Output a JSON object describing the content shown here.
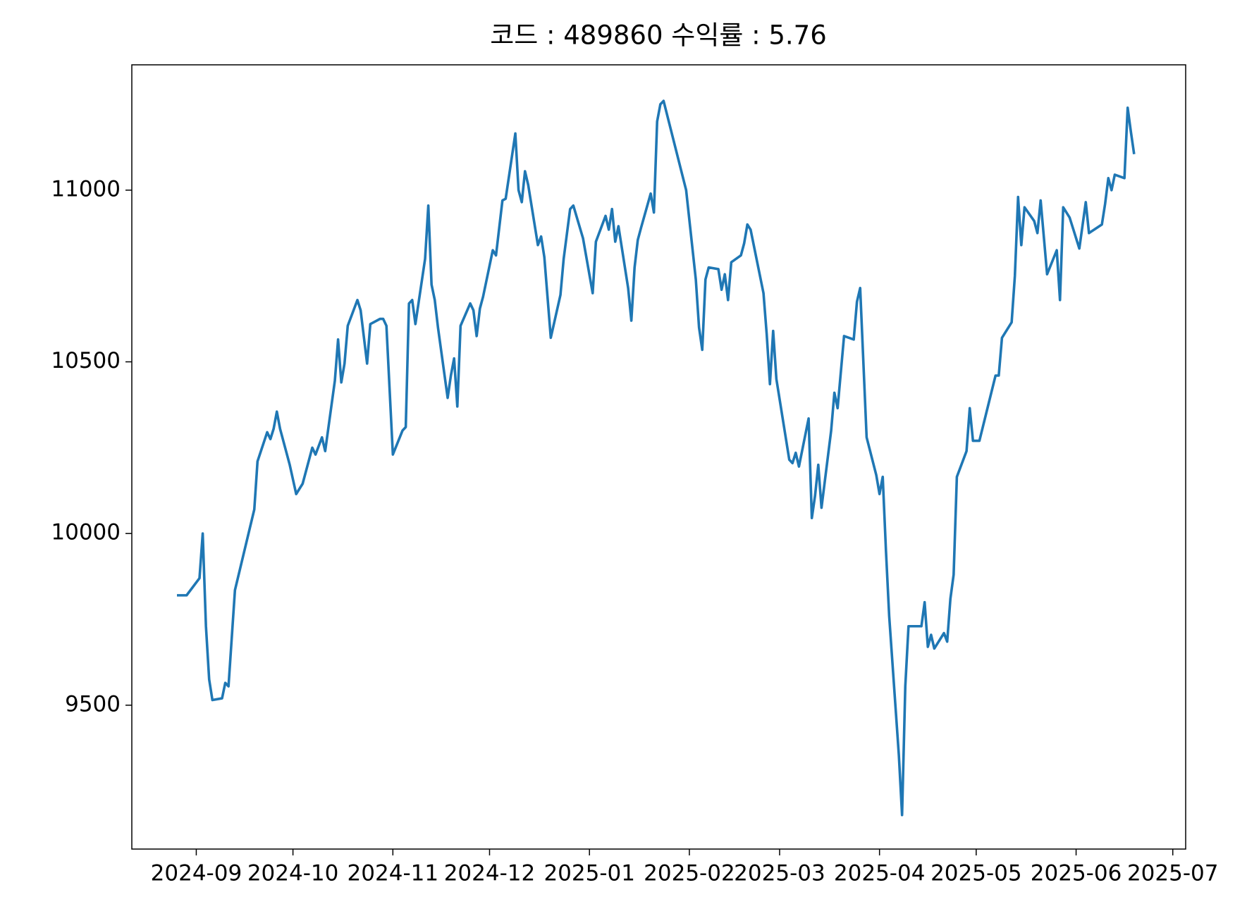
{
  "chart_data": {
    "type": "line",
    "title": "코드 : 489860 수익률 : 5.76",
    "color": "#1f77b4",
    "x": [
      "2024-08-26",
      "2024-08-29",
      "2024-09-02",
      "2024-09-03",
      "2024-09-04",
      "2024-09-05",
      "2024-09-06",
      "2024-09-09",
      "2024-09-10",
      "2024-09-11",
      "2024-09-13",
      "2024-09-19",
      "2024-09-20",
      "2024-09-23",
      "2024-09-24",
      "2024-09-25",
      "2024-09-26",
      "2024-09-27",
      "2024-09-30",
      "2024-10-02",
      "2024-10-04",
      "2024-10-07",
      "2024-10-08",
      "2024-10-10",
      "2024-10-11",
      "2024-10-14",
      "2024-10-15",
      "2024-10-16",
      "2024-10-17",
      "2024-10-18",
      "2024-10-21",
      "2024-10-22",
      "2024-10-24",
      "2024-10-25",
      "2024-10-28",
      "2024-10-29",
      "2024-10-30",
      "2024-11-01",
      "2024-11-04",
      "2024-11-05",
      "2024-11-06",
      "2024-11-07",
      "2024-11-08",
      "2024-11-11",
      "2024-11-12",
      "2024-11-13",
      "2024-11-14",
      "2024-11-15",
      "2024-11-18",
      "2024-11-19",
      "2024-11-20",
      "2024-11-21",
      "2024-11-22",
      "2024-11-25",
      "2024-11-26",
      "2024-11-27",
      "2024-11-28",
      "2024-11-29",
      "2024-12-02",
      "2024-12-03",
      "2024-12-05",
      "2024-12-06",
      "2024-12-09",
      "2024-12-10",
      "2024-12-11",
      "2024-12-12",
      "2024-12-13",
      "2024-12-16",
      "2024-12-17",
      "2024-12-18",
      "2024-12-20",
      "2024-12-23",
      "2024-12-24",
      "2024-12-26",
      "2024-12-27",
      "2024-12-30",
      "2025-01-02",
      "2025-01-03",
      "2025-01-06",
      "2025-01-07",
      "2025-01-08",
      "2025-01-09",
      "2025-01-10",
      "2025-01-13",
      "2025-01-14",
      "2025-01-15",
      "2025-01-16",
      "2025-01-17",
      "2025-01-20",
      "2025-01-21",
      "2025-01-22",
      "2025-01-23",
      "2025-01-24",
      "2025-01-31",
      "2025-02-03",
      "2025-02-04",
      "2025-02-05",
      "2025-02-06",
      "2025-02-07",
      "2025-02-10",
      "2025-02-11",
      "2025-02-12",
      "2025-02-13",
      "2025-02-14",
      "2025-02-17",
      "2025-02-18",
      "2025-02-19",
      "2025-02-20",
      "2025-02-24",
      "2025-02-25",
      "2025-02-26",
      "2025-02-27",
      "2025-02-28",
      "2025-03-04",
      "2025-03-05",
      "2025-03-06",
      "2025-03-07",
      "2025-03-10",
      "2025-03-11",
      "2025-03-12",
      "2025-03-13",
      "2025-03-14",
      "2025-03-17",
      "2025-03-18",
      "2025-03-19",
      "2025-03-21",
      "2025-03-24",
      "2025-03-25",
      "2025-03-26",
      "2025-03-28",
      "2025-03-31",
      "2025-04-01",
      "2025-04-02",
      "2025-04-03",
      "2025-04-04",
      "2025-04-07",
      "2025-04-08",
      "2025-04-09",
      "2025-04-10",
      "2025-04-11",
      "2025-04-14",
      "2025-04-15",
      "2025-04-16",
      "2025-04-17",
      "2025-04-18",
      "2025-04-21",
      "2025-04-22",
      "2025-04-23",
      "2025-04-24",
      "2025-04-25",
      "2025-04-28",
      "2025-04-29",
      "2025-04-30",
      "2025-05-02",
      "2025-05-07",
      "2025-05-08",
      "2025-05-09",
      "2025-05-12",
      "2025-05-13",
      "2025-05-14",
      "2025-05-15",
      "2025-05-16",
      "2025-05-19",
      "2025-05-20",
      "2025-05-21",
      "2025-05-23",
      "2025-05-26",
      "2025-05-27",
      "2025-05-28",
      "2025-05-30",
      "2025-06-02",
      "2025-06-04",
      "2025-06-05",
      "2025-06-09",
      "2025-06-10",
      "2025-06-11",
      "2025-06-12",
      "2025-06-13",
      "2025-06-16",
      "2025-06-17",
      "2025-06-18",
      "2025-06-19"
    ],
    "values": [
      9820,
      9820,
      9870,
      10000,
      9730,
      9575,
      9515,
      9520,
      9565,
      9555,
      9835,
      10070,
      10210,
      10295,
      10275,
      10305,
      10355,
      10305,
      10200,
      10115,
      10145,
      10250,
      10230,
      10280,
      10240,
      10445,
      10565,
      10440,
      10495,
      10605,
      10680,
      10650,
      10495,
      10610,
      10625,
      10625,
      10605,
      10230,
      10300,
      10310,
      10670,
      10680,
      10610,
      10800,
      10955,
      10725,
      10680,
      10600,
      10395,
      10460,
      10510,
      10370,
      10605,
      10670,
      10650,
      10575,
      10655,
      10690,
      10825,
      10810,
      10970,
      10975,
      11165,
      11000,
      10965,
      11055,
      11015,
      10840,
      10865,
      10805,
      10570,
      10695,
      10800,
      10945,
      10955,
      10860,
      10700,
      10850,
      10925,
      10885,
      10945,
      10850,
      10895,
      10715,
      10620,
      10775,
      10855,
      10890,
      10990,
      10935,
      11200,
      11250,
      11260,
      11000,
      10740,
      10600,
      10535,
      10740,
      10775,
      10770,
      10710,
      10755,
      10680,
      10790,
      10810,
      10845,
      10900,
      10885,
      10700,
      10580,
      10435,
      10590,
      10450,
      10215,
      10205,
      10235,
      10195,
      10335,
      10045,
      10110,
      10200,
      10075,
      10300,
      10410,
      10365,
      10575,
      10565,
      10675,
      10715,
      10280,
      10170,
      10115,
      10165,
      9950,
      9760,
      9355,
      9180,
      9555,
      9730,
      9730,
      9730,
      9800,
      9670,
      9705,
      9665,
      9710,
      9685,
      9810,
      9880,
      10165,
      10240,
      10365,
      10270,
      10270,
      10460,
      10460,
      10570,
      10615,
      10750,
      10980,
      10840,
      10950,
      10910,
      10875,
      10970,
      10755,
      10825,
      10680,
      10950,
      10920,
      10830,
      10965,
      10875,
      10900,
      10960,
      11035,
      11000,
      11045,
      11035,
      11240,
      11170,
      11105
    ],
    "xlim": [
      "2024-08-12",
      "2025-07-05"
    ],
    "xticks": [
      {
        "value": "2024-09-01",
        "label": "2024-09"
      },
      {
        "value": "2024-10-01",
        "label": "2024-10"
      },
      {
        "value": "2024-11-01",
        "label": "2024-11"
      },
      {
        "value": "2024-12-01",
        "label": "2024-12"
      },
      {
        "value": "2025-01-01",
        "label": "2025-01"
      },
      {
        "value": "2025-02-01",
        "label": "2025-02"
      },
      {
        "value": "2025-03-01",
        "label": "2025-03"
      },
      {
        "value": "2025-04-01",
        "label": "2025-04"
      },
      {
        "value": "2025-05-01",
        "label": "2025-05"
      },
      {
        "value": "2025-06-01",
        "label": "2025-06"
      },
      {
        "value": "2025-07-01",
        "label": "2025-07"
      }
    ],
    "ylim": [
      9081,
      11365
    ],
    "yticks": [
      9500,
      10000,
      10500,
      11000
    ],
    "grid": false
  }
}
